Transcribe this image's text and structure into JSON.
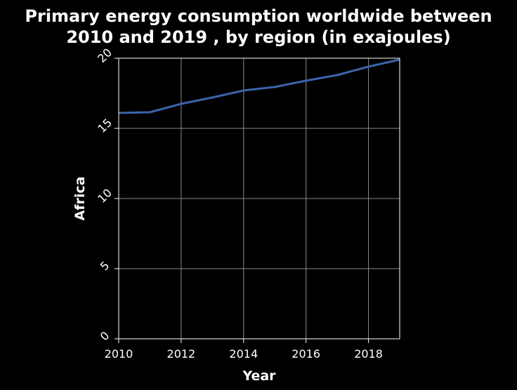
{
  "chart_data": {
    "type": "line",
    "title": [
      "Primary energy consumption worldwide between",
      "2010 and 2019 , by region (in exajoules)"
    ],
    "xlabel": "Year",
    "ylabel": "Africa",
    "xlim": [
      2010,
      2019
    ],
    "ylim": [
      0,
      20
    ],
    "x_ticks": [
      2010,
      2012,
      2014,
      2016,
      2018
    ],
    "y_ticks": [
      0,
      5,
      10,
      15,
      20
    ],
    "grid": true,
    "series_color": "#3b64ad",
    "x": [
      2010,
      2011,
      2012,
      2013,
      2014,
      2015,
      2016,
      2017,
      2018,
      2019
    ],
    "values": [
      16.1,
      16.15,
      16.75,
      17.2,
      17.7,
      17.95,
      18.4,
      18.8,
      19.4,
      19.9
    ]
  }
}
